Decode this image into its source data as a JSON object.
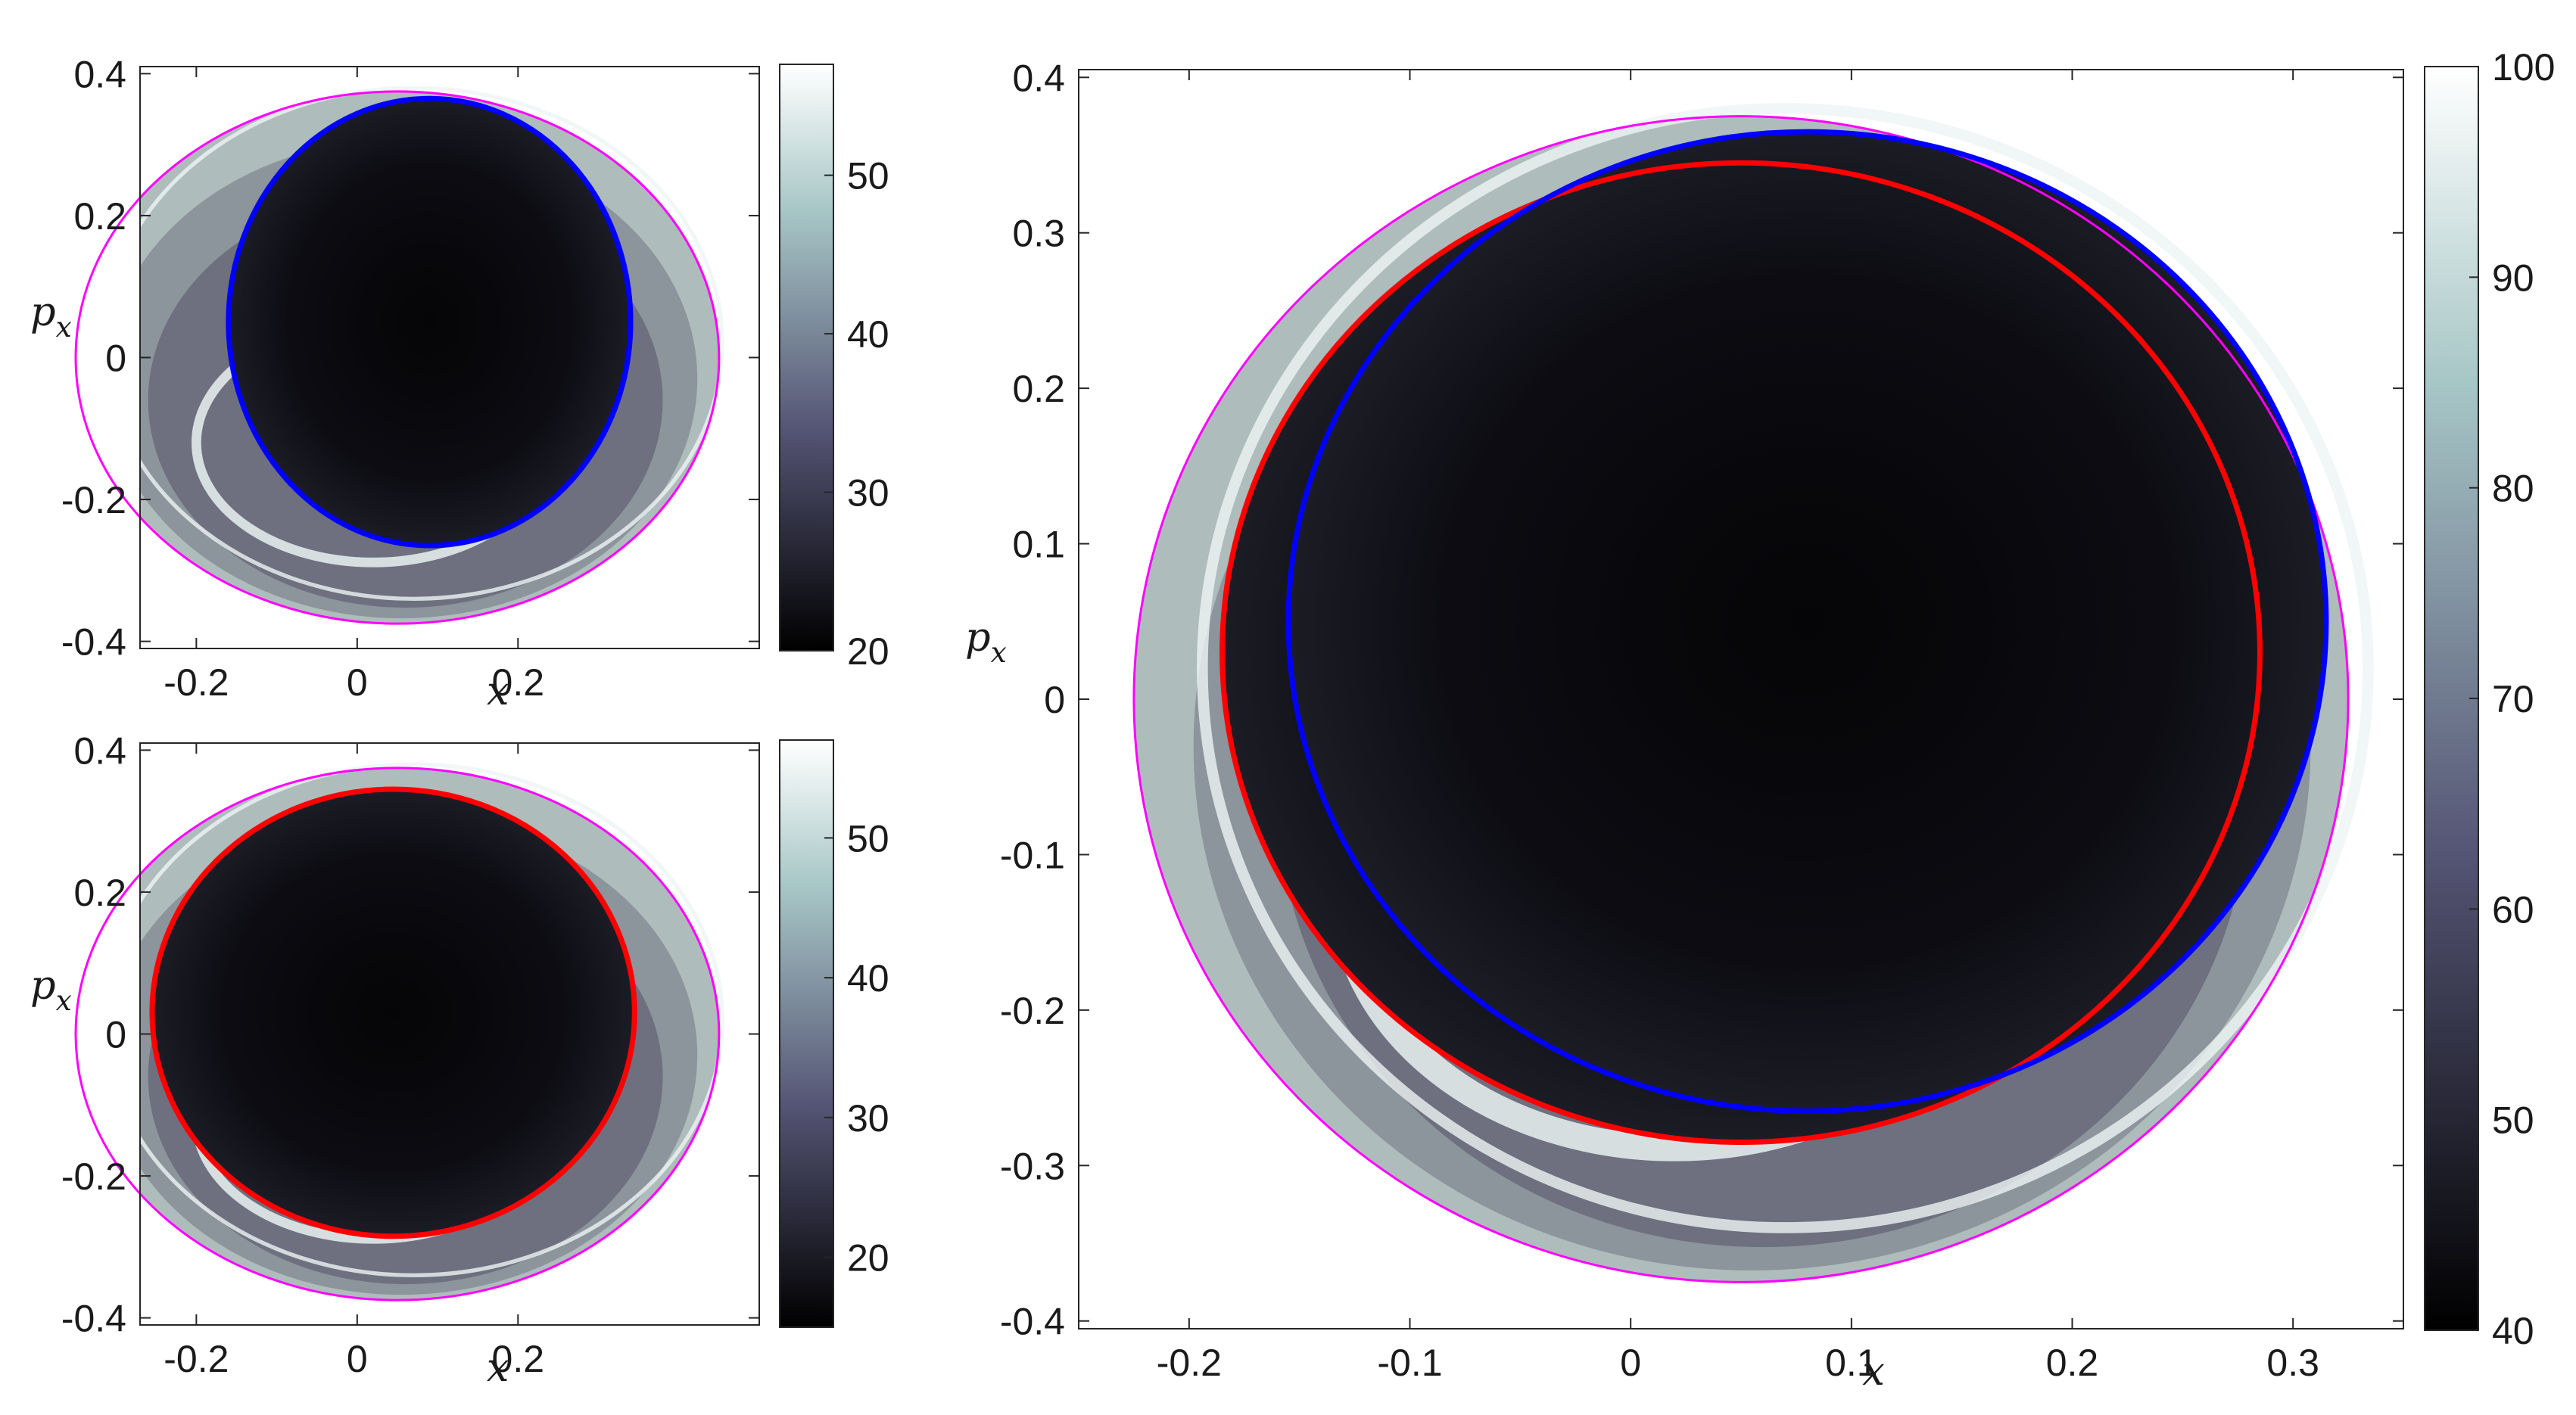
{
  "chart_data": [
    {
      "id": "top-left",
      "type": "heatmap",
      "title": "",
      "xlabel": "x",
      "ylabel": "p",
      "ylabel_sub": "x",
      "xlim": [
        -0.27,
        0.5
      ],
      "ylim": [
        -0.41,
        0.41
      ],
      "xticks": [
        -0.2,
        0,
        0.2
      ],
      "xtick_labels": [
        "-0.2",
        "0",
        "0.2"
      ],
      "yticks": [
        -0.4,
        -0.2,
        0,
        0.2,
        0.4
      ],
      "ytick_labels": [
        "-0.4",
        "-0.2",
        "0",
        "0.2",
        "0.4"
      ],
      "colorbar": {
        "range": [
          20,
          57
        ],
        "ticks": [
          20,
          30,
          40,
          50
        ],
        "tick_labels": [
          "20",
          "30",
          "40",
          "50"
        ],
        "colormap": "bone"
      },
      "grid": false,
      "contours": [
        {
          "name": "energy-boundary",
          "color": "#ff00ff",
          "cx": 0.05,
          "cy": 0.0,
          "rx": 0.4,
          "ry": 0.375,
          "width": "thin"
        },
        {
          "name": "blue-curve",
          "color": "#0000ff",
          "cx": 0.09,
          "cy": 0.05,
          "rx": 0.25,
          "ry": 0.315,
          "width": "thick"
        }
      ]
    },
    {
      "id": "bottom-left",
      "type": "heatmap",
      "title": "",
      "xlabel": "x",
      "ylabel": "p",
      "ylabel_sub": "x",
      "xlim": [
        -0.27,
        0.5
      ],
      "ylim": [
        -0.41,
        0.41
      ],
      "xticks": [
        -0.2,
        0,
        0.2
      ],
      "xtick_labels": [
        "-0.2",
        "0",
        "0.2"
      ],
      "yticks": [
        -0.4,
        -0.2,
        0,
        0.2,
        0.4
      ],
      "ytick_labels": [
        "-0.4",
        "-0.2",
        "0",
        "0.2",
        "0.4"
      ],
      "colorbar": {
        "range": [
          15,
          57
        ],
        "ticks": [
          20,
          30,
          40,
          50
        ],
        "tick_labels": [
          "20",
          "30",
          "40",
          "50"
        ],
        "colormap": "bone"
      },
      "grid": false,
      "contours": [
        {
          "name": "energy-boundary",
          "color": "#ff00ff",
          "cx": 0.05,
          "cy": 0.0,
          "rx": 0.4,
          "ry": 0.375,
          "width": "thin"
        },
        {
          "name": "red-curve",
          "color": "#ff0000",
          "cx": 0.045,
          "cy": 0.03,
          "rx": 0.3,
          "ry": 0.315,
          "width": "thick"
        }
      ]
    },
    {
      "id": "right",
      "type": "heatmap",
      "title": "",
      "xlabel": "x",
      "ylabel": "p",
      "ylabel_sub": "x",
      "xlim": [
        -0.25,
        0.35
      ],
      "ylim": [
        -0.405,
        0.405
      ],
      "xticks": [
        -0.2,
        -0.1,
        0,
        0.1,
        0.2,
        0.3
      ],
      "xtick_labels": [
        "-0.2",
        "-0.1",
        "0",
        "0.1",
        "0.2",
        "0.3"
      ],
      "yticks": [
        -0.4,
        -0.3,
        -0.2,
        -0.1,
        0,
        0.1,
        0.2,
        0.3,
        0.4
      ],
      "ytick_labels": [
        "-0.4",
        "-0.3",
        "-0.2",
        "-0.1",
        "0",
        "0.1",
        "0.2",
        "0.3",
        "0.4"
      ],
      "colorbar": {
        "range": [
          40,
          100
        ],
        "ticks": [
          40,
          50,
          60,
          70,
          80,
          90,
          100
        ],
        "tick_labels": [
          "40",
          "50",
          "60",
          "70",
          "80",
          "90",
          "100"
        ],
        "colormap": "bone"
      },
      "grid": false,
      "contours": [
        {
          "name": "energy-boundary",
          "color": "#ff00ff",
          "cx": 0.05,
          "cy": 0.0,
          "rx": 0.275,
          "ry": 0.375,
          "width": "thin"
        },
        {
          "name": "red-curve",
          "color": "#ff0000",
          "cx": 0.05,
          "cy": 0.03,
          "rx": 0.235,
          "ry": 0.315,
          "width": "thick"
        },
        {
          "name": "blue-curve",
          "color": "#0000ff",
          "cx": 0.08,
          "cy": 0.05,
          "rx": 0.235,
          "ry": 0.315,
          "width": "thick"
        }
      ]
    }
  ]
}
